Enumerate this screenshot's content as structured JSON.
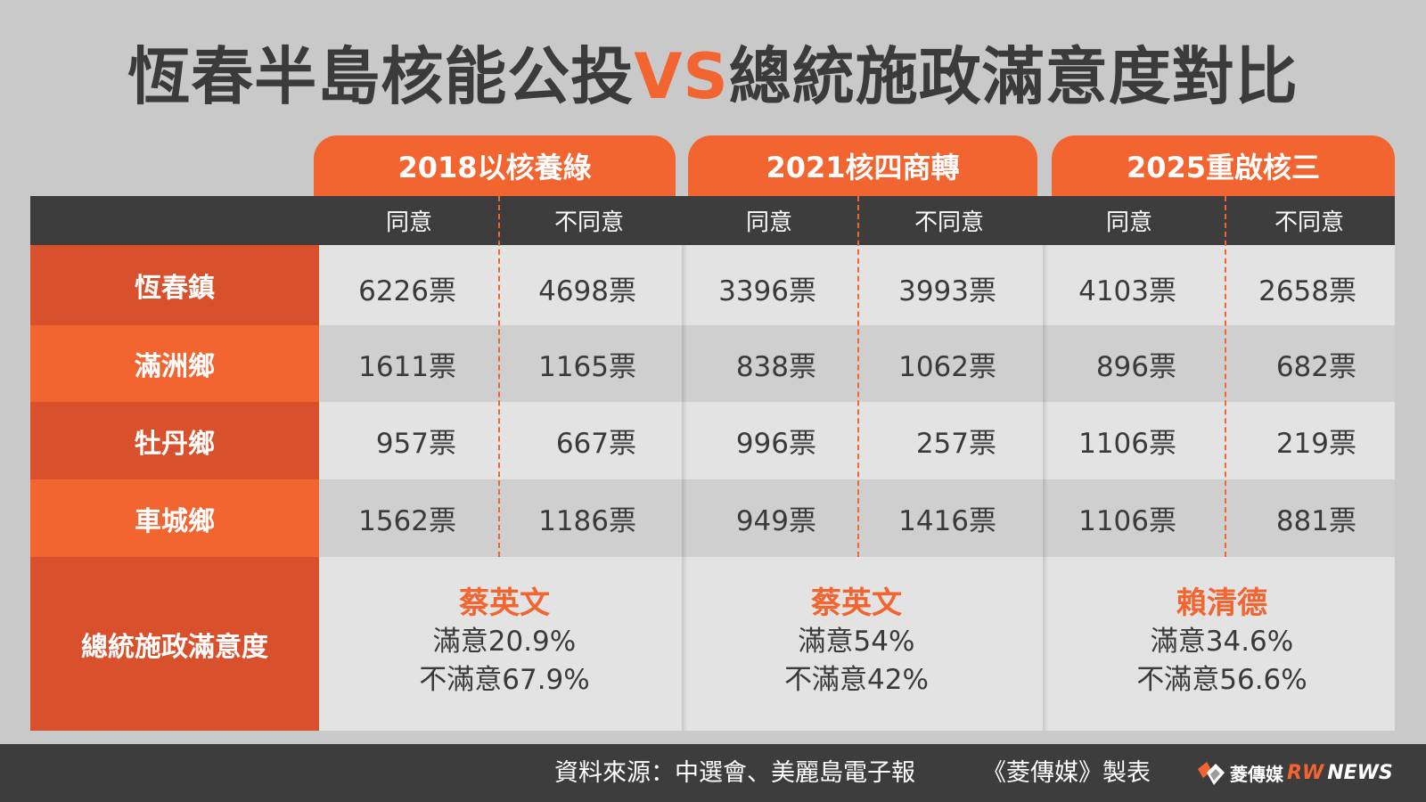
{
  "title": {
    "main": "恆春半島核能公投",
    "vs": "VS",
    "rest": "總統施政滿意度對比"
  },
  "colors": {
    "accent": "#f26430",
    "accent_dark": "#d9512c",
    "header_bg": "#3d3d3d",
    "background": "#c9c9c9"
  },
  "chart_data": {
    "type": "table",
    "groups": [
      "2018以核養綠",
      "2021核四商轉",
      "2025重啟核三"
    ],
    "subheaders": [
      "同意",
      "不同意",
      "同意",
      "不同意",
      "同意",
      "不同意"
    ],
    "rows": [
      {
        "label": "恆春鎮",
        "cells": [
          "6226票",
          "4698票",
          "3396票",
          "3993票",
          "4103票",
          "2658票"
        ]
      },
      {
        "label": "滿洲鄉",
        "cells": [
          "1611票",
          "1165票",
          "838票",
          "1062票",
          "896票",
          "682票"
        ]
      },
      {
        "label": "牡丹鄉",
        "cells": [
          "957票",
          "667票",
          "996票",
          "257票",
          "1106票",
          "219票"
        ]
      },
      {
        "label": "車城鄉",
        "cells": [
          "1562票",
          "1186票",
          "949票",
          "1416票",
          "1106票",
          "881票"
        ]
      }
    ],
    "summary": {
      "label": "總統施政滿意度",
      "items": [
        {
          "president": "蔡英文",
          "satisfied": "滿意20.9%",
          "dissatisfied": "不滿意67.9%"
        },
        {
          "president": "蔡英文",
          "satisfied": "滿意54%",
          "dissatisfied": "不滿意42%"
        },
        {
          "president": "賴清德",
          "satisfied": "滿意34.6%",
          "dissatisfied": "不滿意56.6%"
        }
      ]
    }
  },
  "footer": {
    "source": "資料來源：中選會、美麗島電子報",
    "credit": "《菱傳媒》製表",
    "logo_text": "菱傳媒",
    "logo_rw": "RW",
    "logo_news": "NEWS"
  }
}
